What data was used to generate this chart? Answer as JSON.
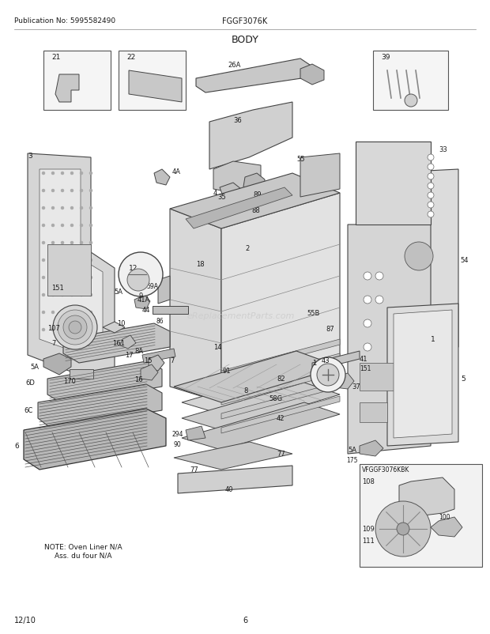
{
  "title": "BODY",
  "header_left": "Publication No: 5995582490",
  "header_center": "FGGF3076K",
  "footer_left": "12/10",
  "footer_center": "6",
  "note_text": "NOTE: Oven Liner N/A\nAss. du four N/A",
  "bg_color": "#ffffff",
  "text_color": "#1a1a1a",
  "gray_light": "#d8d8d8",
  "gray_med": "#b0b0b0",
  "gray_dark": "#707070",
  "line_color": "#444444",
  "figsize": [
    6.2,
    8.03
  ],
  "dpi": 100
}
